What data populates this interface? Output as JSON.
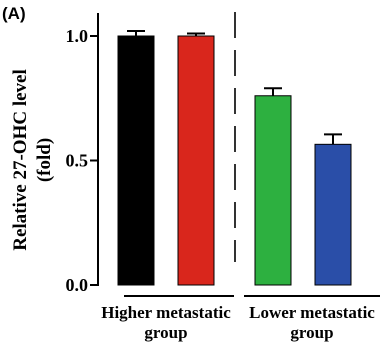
{
  "panel_label": "(A)",
  "chart_data": {
    "type": "bar",
    "title": "",
    "ylabel_lines": [
      "Relative 27-OHC level",
      "(fold)"
    ],
    "ylim": [
      0,
      1.1
    ],
    "yticks": [
      {
        "value": 0.0,
        "label": "0.0"
      },
      {
        "value": 0.5,
        "label": "0.5"
      },
      {
        "value": 1.0,
        "label": "1.0"
      }
    ],
    "groups": [
      {
        "label_lines": [
          "Higher metastatic",
          "group"
        ],
        "bar_indices": [
          0,
          1
        ]
      },
      {
        "label_lines": [
          "Lower metastatic",
          "group"
        ],
        "bar_indices": [
          2,
          3
        ]
      }
    ],
    "bars": [
      {
        "value": 1.0,
        "error": 0.02,
        "color": "#000000"
      },
      {
        "value": 1.0,
        "error": 0.01,
        "color": "#d9261c"
      },
      {
        "value": 0.76,
        "error": 0.03,
        "color": "#2db040"
      },
      {
        "value": 0.565,
        "error": 0.04,
        "color": "#2a4ea8"
      }
    ],
    "group_divider": "dashed vertical line",
    "grid": false,
    "legend": "none"
  }
}
